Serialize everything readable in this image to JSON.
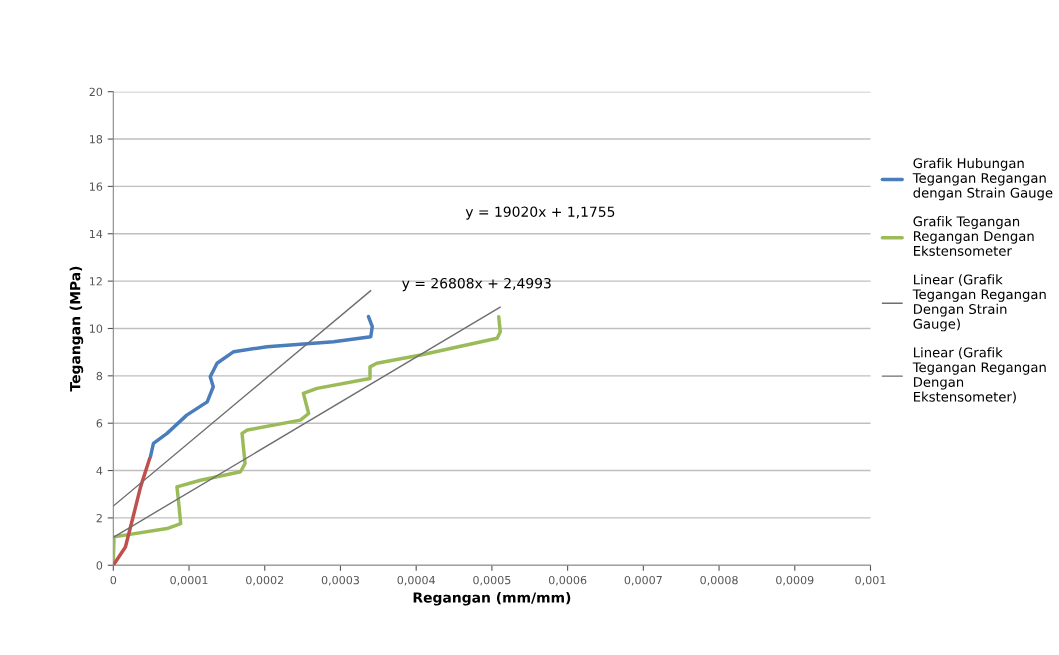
{
  "chart_data": {
    "type": "line",
    "xlabel": "Regangan (mm/mm)",
    "ylabel": "Tegangan (MPa)",
    "xlim": [
      0,
      0.001
    ],
    "ylim": [
      0,
      20
    ],
    "xticks": [
      {
        "value": 0,
        "label": "0"
      },
      {
        "value": 0.0001,
        "label": "0,0001"
      },
      {
        "value": 0.0002,
        "label": "0,0002"
      },
      {
        "value": 0.0003,
        "label": "0,0003"
      },
      {
        "value": 0.0004,
        "label": "0,0004"
      },
      {
        "value": 0.0005,
        "label": "0,0005"
      },
      {
        "value": 0.0006,
        "label": "0,0006"
      },
      {
        "value": 0.0007,
        "label": "0,0007"
      },
      {
        "value": 0.0008,
        "label": "0,0008"
      },
      {
        "value": 0.0009,
        "label": "0,0009"
      },
      {
        "value": 0.001,
        "label": "0,001"
      }
    ],
    "yticks": [
      0,
      2,
      4,
      6,
      8,
      10,
      12,
      14,
      16,
      18,
      20
    ],
    "grid": "y",
    "legend": "right",
    "marker": "none",
    "line_style": "solid",
    "series": [
      {
        "name": "Grafik Hubungan\nTegangan Regangan\ndengan Strain Gauge",
        "color": "#4a7ebb",
        "x": [
          4.9e-05,
          5.3e-05,
          7.1e-05,
          9.7e-05,
          0.000124,
          0.000132,
          0.000128,
          0.000137,
          0.000159,
          0.000203,
          0.000291,
          0.00034,
          0.000342,
          0.000337
        ],
        "values": [
          4.58,
          5.15,
          5.57,
          6.34,
          6.9,
          7.54,
          7.96,
          8.53,
          9.02,
          9.23,
          9.44,
          9.65,
          10.08,
          10.5
        ]
      },
      {
        "name": "Grafik Tegangan\nRegangan Dengan\nEkstensometer",
        "color": "#9bbb59",
        "x": [
          0,
          1e-06,
          7.1e-05,
          8.9e-05,
          8.6e-05,
          8.4e-05,
          0.000115,
          0.000168,
          0.000174,
          0.00017,
          0.000177,
          0.000247,
          0.000258,
          0.000251,
          0.000269,
          0.000339,
          0.000339,
          0.000348,
          0.000406,
          0.000507,
          0.000511,
          0.000509
        ],
        "values": [
          0.21,
          1.2,
          1.55,
          1.76,
          2.75,
          3.31,
          3.59,
          3.95,
          4.3,
          5.57,
          5.71,
          6.13,
          6.41,
          7.26,
          7.47,
          7.89,
          8.38,
          8.53,
          8.88,
          9.59,
          9.86,
          10.5
        ]
      },
      {
        "color": "#c0504d",
        "x": [
          0,
          1.6e-05,
          2.5e-05,
          3.6e-05,
          4.8e-05
        ],
        "values": [
          0,
          0.77,
          1.9,
          3.31,
          4.51
        ]
      },
      {
        "name": "Linear (Grafik\nTegangan Regangan\nDengan Strain\nGauge)",
        "color": "#6e6e6e",
        "x": [
          0,
          0.00034
        ],
        "values": [
          2.5,
          11.6
        ]
      },
      {
        "name": "Linear (Grafik\nTegangan Regangan\nDengan\nEkstensometer)",
        "color": "#6e6e6e",
        "x": [
          0,
          0.000511
        ],
        "values": [
          1.18,
          10.9
        ]
      }
    ],
    "annotations": [
      "y = 19020x + 1,1755",
      "y = 26808x + 2,4993"
    ]
  }
}
